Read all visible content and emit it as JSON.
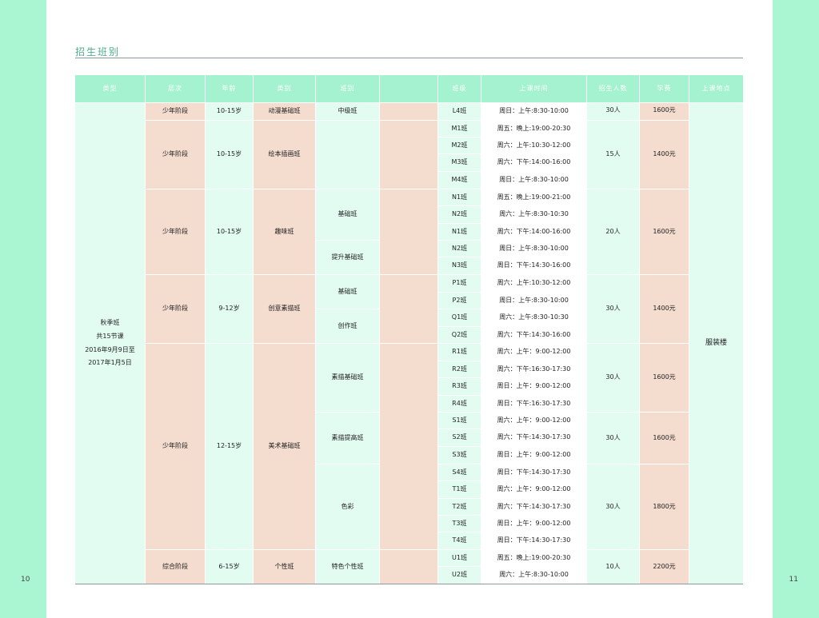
{
  "page": {
    "section_title": "招生班别",
    "page_left": "10",
    "page_right": "11"
  },
  "table": {
    "headers": [
      "类型",
      "层次",
      "年龄",
      "类别",
      "班别",
      "",
      "班级",
      "上课时间",
      "招生人数",
      "学费",
      "上课地点"
    ],
    "type_lines": [
      "秋季班",
      "共15节课",
      "2016年9月9日至",
      "2017年1月5日"
    ],
    "location": "服装楼",
    "levels": [
      "少年阶段",
      "少年阶段",
      "少年阶段",
      "少年阶段",
      "少年阶段",
      "综合阶段"
    ],
    "ages": [
      "10-15岁",
      "10-15岁",
      "10-15岁",
      "9-12岁",
      "12-15岁",
      "6-15岁"
    ],
    "categories": [
      "动漫基础班",
      "绘本插画班",
      "趣味班",
      "创意素描班",
      "美术基础班",
      "个性班"
    ],
    "class_types": [
      "中级班",
      "基础班",
      "提升基础班",
      "基础班",
      "创作班",
      "素描基础班",
      "素描提高班",
      "色彩",
      "特色个性班"
    ],
    "rows": [
      {
        "code": "L4班",
        "time": "周日：上午:8:30-10:00"
      },
      {
        "code": "M1班",
        "time": "周五：晚上:19:00-20:30"
      },
      {
        "code": "M2班",
        "time": "周六：上午:10:30-12:00"
      },
      {
        "code": "M3班",
        "time": "周六：下午:14:00-16:00"
      },
      {
        "code": "M4班",
        "time": "周日：上午:8:30-10:00"
      },
      {
        "code": "N1班",
        "time": "周五：晚上:19:00-21:00"
      },
      {
        "code": "N2班",
        "time": "周六：上午:8:30-10:30"
      },
      {
        "code": "N1班",
        "time": "周六：下午:14:00-16:00"
      },
      {
        "code": "N2班",
        "time": "周日：上午:8:30-10:00"
      },
      {
        "code": "N3班",
        "time": "周日：下午:14:30-16:00"
      },
      {
        "code": "P1班",
        "time": "周六：上午:10:30-12:00"
      },
      {
        "code": "P2班",
        "time": "周日：上午:8:30-10:00"
      },
      {
        "code": "Q1班",
        "time": "周六：上午:8:30-10:30"
      },
      {
        "code": "Q2班",
        "time": "周六：下午:14:30-16:00"
      },
      {
        "code": "R1班",
        "time": "周六：上午：9:00-12:00"
      },
      {
        "code": "R2班",
        "time": "周六：下午:16:30-17:30"
      },
      {
        "code": "R3班",
        "time": "周日：上午：9:00-12:00"
      },
      {
        "code": "R4班",
        "time": "周日：下午:16:30-17:30"
      },
      {
        "code": "S1班",
        "time": "周六：上午：9:00-12:00"
      },
      {
        "code": "S2班",
        "time": "周六：下午:14:30-17:30"
      },
      {
        "code": "S3班",
        "time": "周日：上午：9:00-12:00"
      },
      {
        "code": "S4班",
        "time": "周日：下午:14:30-17:30"
      },
      {
        "code": "T1班",
        "time": "周六：上午：9:00-12:00"
      },
      {
        "code": "T2班",
        "time": "周六：下午:14:30-17:30"
      },
      {
        "code": "T3班",
        "time": "周日：上午：9:00-12:00"
      },
      {
        "code": "T4班",
        "time": "周日：下午:14:30-17:30"
      },
      {
        "code": "U1班",
        "time": "周五：晚上:19:00-20:30"
      },
      {
        "code": "U2班",
        "time": "周六：上午:8:30-10:00"
      }
    ],
    "enrollment": [
      "30人",
      "15人",
      "20人",
      "30人",
      "30人",
      "30人",
      "30人",
      "10人"
    ],
    "fees": [
      "1600元",
      "1400元",
      "1600元",
      "1400元",
      "1600元",
      "1600元",
      "1800元",
      "2200元"
    ]
  }
}
